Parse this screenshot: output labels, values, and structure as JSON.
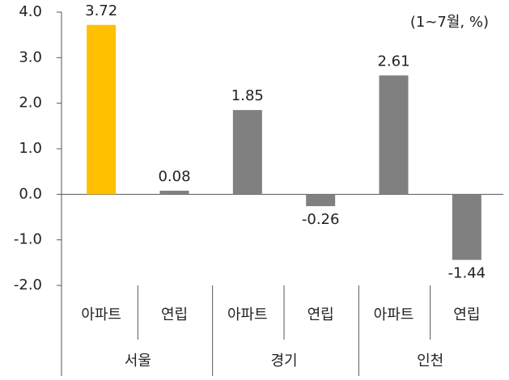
{
  "chart_data": {
    "type": "bar",
    "annotation": "(1~7월, %)",
    "categories": [
      "아파트",
      "연립",
      "아파트",
      "연립",
      "아파트",
      "연립"
    ],
    "groups": [
      "서울",
      "경기",
      "인천"
    ],
    "values": [
      3.72,
      0.08,
      1.85,
      -0.26,
      2.61,
      -1.44
    ],
    "colors": [
      "#ffc000",
      "#808080",
      "#808080",
      "#808080",
      "#808080",
      "#808080"
    ],
    "ylim": [
      -2,
      4
    ],
    "yticks": [
      {
        "value": -2,
        "label": "-2.0"
      },
      {
        "value": -1,
        "label": "-1.0"
      },
      {
        "value": 0,
        "label": "0.0"
      },
      {
        "value": 1,
        "label": "1.0"
      },
      {
        "value": 2,
        "label": "2.0"
      },
      {
        "value": 3,
        "label": "3.0"
      },
      {
        "value": 4,
        "label": "4.0"
      }
    ]
  }
}
